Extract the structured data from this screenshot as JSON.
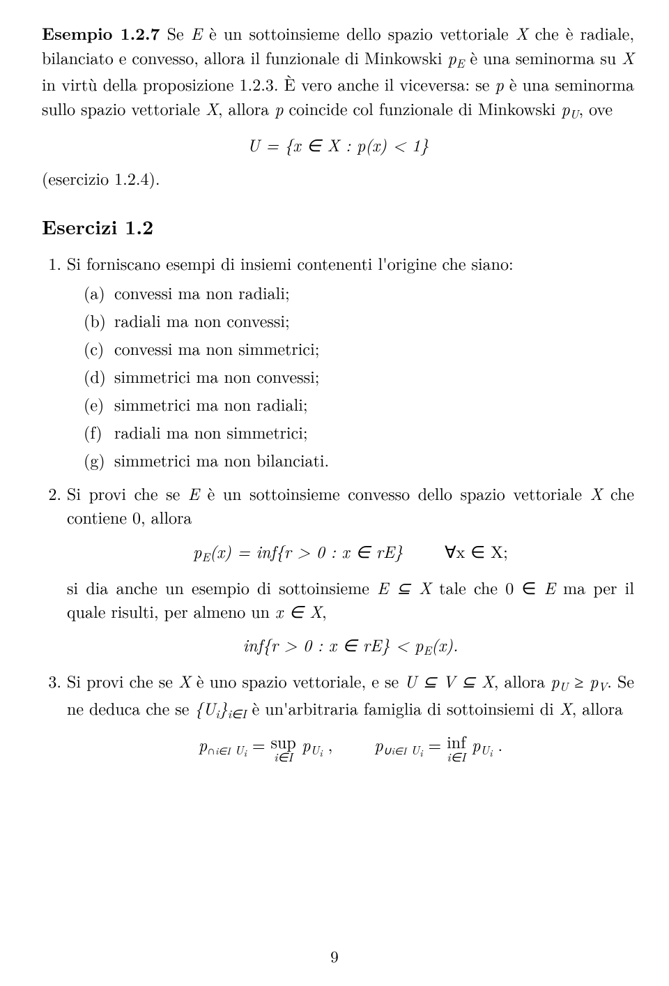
{
  "example": {
    "label": "Esempio 1.2.7",
    "text_a": "Se ",
    "math1": "E",
    "text_b": " è un sottoinsieme dello spazio vettoriale ",
    "math2": "X",
    "text_c": " che è radiale, bilanciato e convesso, allora il funzionale di Minkowski ",
    "math3": "p",
    "math3s": "E",
    "text_d": " è una seminorma su ",
    "math4": "X",
    "text_e": " in virtù della proposizione 1.2.3. È vero anche il viceversa: se ",
    "math5": "p",
    "text_f": " è una seminorma sullo spazio vettoriale ",
    "math6": "X",
    "text_g": ", allora ",
    "math7": "p",
    "text_h": " coincide col funzionale di Minkowski ",
    "math8": "p",
    "math8s": "U",
    "text_i": ", ove"
  },
  "eq1": "U = {x ∈ X :  p(x) < 1}",
  "after_eq": "(esercizio 1.2.4).",
  "section": "Esercizi 1.2",
  "item1_intro": "Si forniscano esempi di insiemi contenenti l'origine che siano:",
  "sub": {
    "a": "convessi ma non radiali;",
    "b": "radiali ma non convessi;",
    "c": "convessi ma non simmetrici;",
    "d": "simmetrici ma non convessi;",
    "e": "simmetrici ma non radiali;",
    "f": "radiali ma non simmetrici;",
    "g": "simmetrici ma non bilanciati."
  },
  "item2": {
    "a": "Si provi che se ",
    "m1": "E",
    "b": " è un sottoinsieme convesso dello spazio vettoriale ",
    "m2": "X",
    "c": " che contiene 0, allora",
    "eq_left": "p",
    "eq_left_sub": "E",
    "eq_mid": "(x) = inf{r > 0 :  x ∈ rE}",
    "eq_right": "∀x ∈ X;",
    "d": "si dia anche un esempio di sottoinsieme ",
    "m3": "E ⊆ X",
    "e": " tale che 0 ∈ ",
    "m4": "E",
    "f": " ma per il quale risulti, per almeno un ",
    "m5": "x ∈ X",
    "g": ",",
    "eq2": "inf{r > 0 :  x ∈ rE} < p",
    "eq2_sub": "E",
    "eq2_end": "(x)."
  },
  "item3": {
    "a": "Si provi che se ",
    "m1": "X",
    "b": " è uno spazio vettoriale, e se ",
    "m2": "U ⊆ V ⊆ X",
    "c": ", allora ",
    "m3a": "p",
    "m3a_sub": "U",
    "m3b": " ≥ p",
    "m3b_sub": "V",
    "d": ". Se ne deduca che se ",
    "m4a": "{U",
    "m4a_sub": "i",
    "m4b": "}",
    "m4b_sub": "i∈I",
    "e": " è un'arbitraria famiglia di sottoinsiemi di ",
    "m5": "X",
    "f": ", allora"
  },
  "final": {
    "left_p": "p",
    "left_sub": "∩",
    "left_subsub": "i∈I",
    "left_sub2": " U",
    "left_sub2s": "i",
    "eq": " = ",
    "sup": "sup",
    "sup_sub": "i∈I",
    "sup_after": " p",
    "sup_after_sub": "U",
    "sup_after_subsub": "i",
    "comma": " ,",
    "right_p": "p",
    "right_sub": "∪",
    "right_subsub": "i∈I",
    "right_sub2": " U",
    "right_sub2s": "i",
    "inf": "inf",
    "inf_sub": "i∈I",
    "inf_after": " p",
    "inf_after_sub": "U",
    "inf_after_subsub": "i",
    "period": " ."
  },
  "pagenum": "9"
}
